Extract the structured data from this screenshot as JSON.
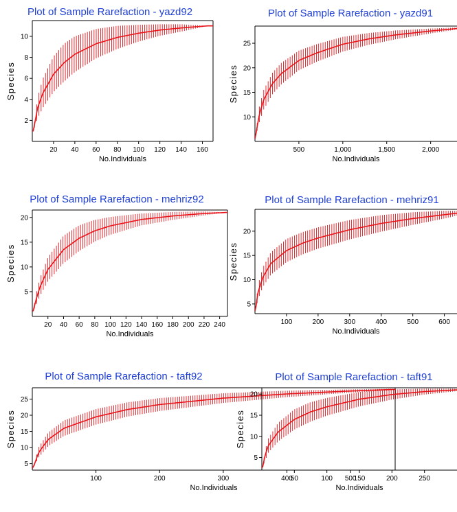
{
  "colors": {
    "series": "#e8141a",
    "title": "#1f3fd6",
    "axis": "#000000"
  },
  "chart_data": [
    {
      "type": "line",
      "title": "Plot of Sample Rarefaction - yazd92",
      "xlabel": "No.Individuals",
      "ylabel": "Species",
      "xlim": [
        0,
        170
      ],
      "ylim": [
        0,
        11.5
      ],
      "xticks": [
        20,
        40,
        60,
        80,
        100,
        120,
        140,
        160
      ],
      "yticks": [
        2,
        4,
        6,
        8,
        10
      ],
      "xtick_labels": [
        "20",
        "40",
        "60",
        "80",
        "100",
        "120",
        "140",
        "160"
      ],
      "ytick_labels": [
        "2",
        "4",
        "6",
        "8",
        "10"
      ],
      "x": [
        1,
        5,
        10,
        20,
        30,
        40,
        60,
        80,
        100,
        120,
        140,
        165
      ],
      "y": [
        1.0,
        3.2,
        4.6,
        6.4,
        7.5,
        8.3,
        9.3,
        9.9,
        10.3,
        10.6,
        10.8,
        11.0
      ],
      "ci_halfwidth": [
        0.0,
        1.0,
        1.4,
        1.7,
        1.8,
        1.7,
        1.4,
        1.1,
        0.8,
        0.55,
        0.35,
        0.0
      ]
    },
    {
      "type": "line",
      "title": "Plot of Sample Rarefaction - yazd91",
      "xlabel": "No.Individuals",
      "ylabel": "Species",
      "xlim": [
        0,
        2300
      ],
      "ylim": [
        5,
        28.5
      ],
      "xticks": [
        500,
        1000,
        1500,
        2000
      ],
      "yticks": [
        10,
        15,
        20,
        25
      ],
      "xtick_labels": [
        "500",
        "1,000",
        "1,500",
        "2,000"
      ],
      "ytick_labels": [
        "10",
        "15",
        "20",
        "25"
      ],
      "x": [
        1,
        50,
        100,
        200,
        300,
        500,
        700,
        1000,
        1300,
        1600,
        2000,
        2300
      ],
      "y": [
        5.5,
        10.5,
        13.5,
        16.8,
        18.8,
        21.5,
        23.0,
        24.8,
        25.9,
        26.7,
        27.5,
        28.0
      ],
      "ci_halfwidth": [
        0.0,
        1.6,
        2.0,
        2.2,
        2.2,
        2.0,
        1.8,
        1.5,
        1.2,
        0.9,
        0.5,
        0.2
      ]
    },
    {
      "type": "line",
      "title": "Plot of Sample Rarefaction - mehriz92",
      "xlabel": "No.Individuals",
      "ylabel": "Species",
      "xlim": [
        0,
        250
      ],
      "ylim": [
        0,
        21.5
      ],
      "xticks": [
        20,
        40,
        60,
        80,
        100,
        120,
        140,
        160,
        180,
        200,
        220,
        240
      ],
      "yticks": [
        5,
        10,
        15,
        20
      ],
      "xtick_labels": [
        "20",
        "40",
        "60",
        "80",
        "100",
        "120",
        "140",
        "160",
        "180",
        "200",
        "220",
        "240"
      ],
      "ytick_labels": [
        "5",
        "10",
        "15",
        "20"
      ],
      "x": [
        1,
        5,
        10,
        20,
        40,
        60,
        80,
        100,
        140,
        180,
        220,
        248
      ],
      "y": [
        1.0,
        3.5,
        6.0,
        9.5,
        13.5,
        15.8,
        17.3,
        18.3,
        19.6,
        20.3,
        20.8,
        21.0
      ],
      "ci_halfwidth": [
        0.0,
        1.2,
        1.8,
        2.4,
        2.8,
        2.6,
        2.2,
        1.8,
        1.2,
        0.8,
        0.4,
        0.0
      ]
    },
    {
      "type": "line",
      "title": "Plot of Sample Rarefaction - mehriz91",
      "xlabel": "No.Individuals",
      "ylabel": "Species",
      "xlim": [
        0,
        640
      ],
      "ylim": [
        3,
        24.5
      ],
      "xticks": [
        100,
        200,
        300,
        400,
        500,
        600
      ],
      "yticks": [
        5,
        10,
        15,
        20
      ],
      "xtick_labels": [
        "100",
        "200",
        "300",
        "400",
        "500",
        "600"
      ],
      "ytick_labels": [
        "5",
        "10",
        "15",
        "20"
      ],
      "x": [
        1,
        10,
        25,
        50,
        100,
        150,
        200,
        300,
        400,
        500,
        600,
        640
      ],
      "y": [
        3.5,
        7.5,
        10.5,
        13.3,
        16.0,
        17.5,
        18.6,
        20.3,
        21.6,
        22.6,
        23.4,
        23.7
      ],
      "ci_halfwidth": [
        0.0,
        1.5,
        2.0,
        2.3,
        2.4,
        2.3,
        2.2,
        2.0,
        1.7,
        1.3,
        0.8,
        0.5
      ]
    },
    {
      "type": "line",
      "title": "Plot of Sample Rarefaction - taft92",
      "xlabel": "No.Individuals",
      "ylabel": "Species",
      "xlim": [
        0,
        570
      ],
      "ylim": [
        3,
        28.5
      ],
      "xticks": [
        100,
        200,
        300,
        400,
        500
      ],
      "yticks": [
        5,
        10,
        15,
        20,
        25
      ],
      "xtick_labels": [
        "100",
        "200",
        "300",
        "400",
        "500"
      ],
      "ytick_labels": [
        "5",
        "10",
        "15",
        "20",
        "25"
      ],
      "x": [
        1,
        10,
        25,
        50,
        100,
        150,
        200,
        300,
        400,
        500,
        570
      ],
      "y": [
        3.5,
        8.5,
        12.5,
        16.0,
        19.5,
        21.8,
        23.3,
        25.3,
        26.6,
        27.5,
        28.0
      ],
      "ci_halfwidth": [
        0.0,
        1.6,
        2.1,
        2.4,
        2.4,
        2.2,
        2.0,
        1.5,
        1.0,
        0.5,
        0.2
      ]
    },
    {
      "type": "line",
      "title": "Plot of Sample Rarefaction - taft91",
      "xlabel": "No.Individuals",
      "ylabel": "Species",
      "xlim": [
        0,
        300
      ],
      "ylim": [
        2,
        21.5
      ],
      "xticks": [
        50,
        100,
        150,
        200,
        250
      ],
      "yticks": [
        5,
        10,
        15,
        20
      ],
      "xtick_labels": [
        "50",
        "100",
        "150",
        "200",
        "250"
      ],
      "ytick_labels": [
        "5",
        "10",
        "15",
        "20"
      ],
      "x": [
        1,
        5,
        10,
        25,
        50,
        75,
        100,
        150,
        200,
        250,
        300
      ],
      "y": [
        2.5,
        5.5,
        7.8,
        11.0,
        14.0,
        15.8,
        17.0,
        18.8,
        19.9,
        20.6,
        21.0
      ],
      "ci_halfwidth": [
        0.0,
        1.2,
        1.7,
        2.2,
        2.4,
        2.3,
        2.1,
        1.7,
        1.2,
        0.7,
        0.3
      ]
    }
  ]
}
